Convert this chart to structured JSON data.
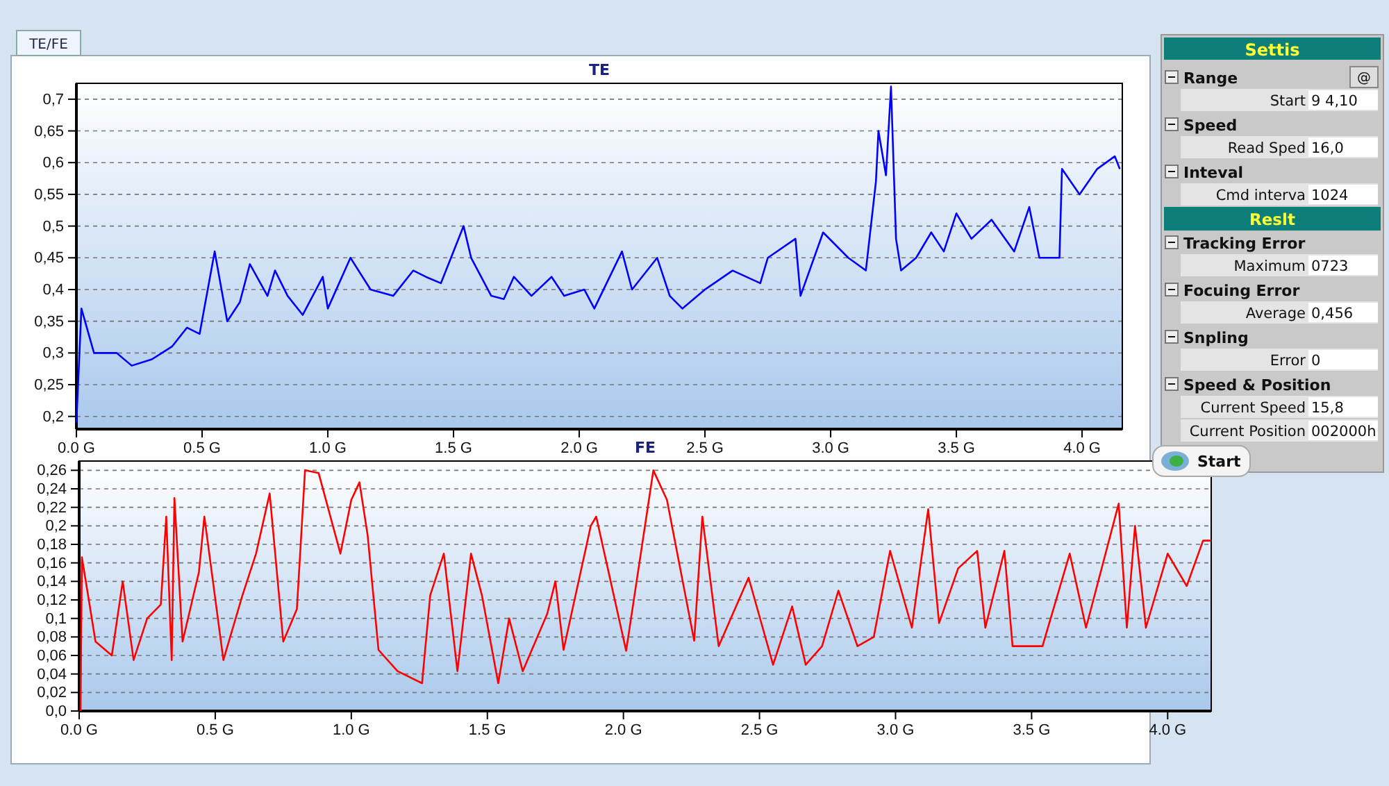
{
  "chart_data": [
    {
      "type": "line",
      "title": "TE",
      "annotations": [
        "TE/FE"
      ],
      "grid": "y",
      "xlim": [
        0,
        4.16
      ],
      "ylim": [
        0.18,
        0.725
      ],
      "xticks": [
        {
          "value": 0,
          "label": "0.0 G"
        },
        {
          "value": 0.5,
          "label": "0.5 G"
        },
        {
          "value": 1,
          "label": "1.0 G"
        },
        {
          "value": 1.5,
          "label": "1.5 G"
        },
        {
          "value": 2,
          "label": "2.0 G"
        },
        {
          "value": 2.5,
          "label": "2.5 G"
        },
        {
          "value": 3,
          "label": "3.0 G"
        },
        {
          "value": 3.5,
          "label": "3.5 G"
        },
        {
          "value": 4,
          "label": "4.0 G"
        }
      ],
      "yticks": [
        {
          "value": 0.2,
          "label": "0,2"
        },
        {
          "value": 0.25,
          "label": "0,25"
        },
        {
          "value": 0.3,
          "label": "0,3"
        },
        {
          "value": 0.35,
          "label": "0,35"
        },
        {
          "value": 0.4,
          "label": "0,4"
        },
        {
          "value": 0.45,
          "label": "0,45"
        },
        {
          "value": 0.5,
          "label": "0,5"
        },
        {
          "value": 0.55,
          "label": "0,55"
        },
        {
          "value": 0.6,
          "label": "0,6"
        },
        {
          "value": 0.65,
          "label": "0,65"
        },
        {
          "value": 0.7,
          "label": "0,7"
        }
      ],
      "series": [
        {
          "color": "#0000ff",
          "x": [
            0,
            0.02,
            0.07,
            0.16,
            0.22,
            0.3,
            0.38,
            0.44,
            0.49,
            0.55,
            0.6,
            0.65,
            0.69,
            0.76,
            0.79,
            0.84,
            0.9,
            0.98,
            1.0,
            1.09,
            1.17,
            1.26,
            1.34,
            1.39,
            1.45,
            1.54,
            1.57,
            1.65,
            1.7,
            1.74,
            1.81,
            1.89,
            1.94,
            2.02,
            2.06,
            2.17,
            2.21,
            2.31,
            2.36,
            2.41,
            2.5,
            2.61,
            2.72,
            2.75,
            2.86,
            2.88,
            2.97,
            3.07,
            3.14,
            3.18,
            3.19,
            3.22,
            3.24,
            3.26,
            3.28,
            3.34,
            3.4,
            3.45,
            3.5,
            3.56,
            3.64,
            3.73,
            3.79,
            3.83,
            3.91,
            3.92,
            3.99,
            4.06,
            4.13,
            4.15
          ],
          "values": [
            0.19,
            0.37,
            0.3,
            0.3,
            0.28,
            0.29,
            0.31,
            0.34,
            0.33,
            0.46,
            0.35,
            0.38,
            0.44,
            0.39,
            0.43,
            0.39,
            0.36,
            0.42,
            0.37,
            0.45,
            0.4,
            0.39,
            0.43,
            0.42,
            0.41,
            0.5,
            0.45,
            0.39,
            0.385,
            0.42,
            0.39,
            0.42,
            0.39,
            0.4,
            0.37,
            0.46,
            0.4,
            0.45,
            0.39,
            0.37,
            0.4,
            0.43,
            0.41,
            0.45,
            0.48,
            0.39,
            0.49,
            0.45,
            0.43,
            0.57,
            0.65,
            0.58,
            0.72,
            0.48,
            0.43,
            0.45,
            0.49,
            0.46,
            0.52,
            0.48,
            0.51,
            0.46,
            0.53,
            0.45,
            0.45,
            0.59,
            0.55,
            0.59,
            0.61,
            0.59
          ]
        }
      ]
    },
    {
      "type": "line",
      "title": "FE",
      "grid": "y",
      "xlim": [
        0,
        4.16
      ],
      "ylim": [
        0,
        0.27
      ],
      "xticks": [
        {
          "value": 0,
          "label": "0.0 G"
        },
        {
          "value": 0.5,
          "label": "0.5 G"
        },
        {
          "value": 1,
          "label": "1.0 G"
        },
        {
          "value": 1.5,
          "label": "1.5 G"
        },
        {
          "value": 2,
          "label": "2.0 G"
        },
        {
          "value": 2.5,
          "label": "2.5 G"
        },
        {
          "value": 3,
          "label": "3.0 G"
        },
        {
          "value": 3.5,
          "label": "3.5 G"
        },
        {
          "value": 4,
          "label": "4.0 G"
        }
      ],
      "yticks": [
        {
          "value": 0,
          "label": "0,0"
        },
        {
          "value": 0.02,
          "label": "0,02"
        },
        {
          "value": 0.04,
          "label": "0,04"
        },
        {
          "value": 0.06,
          "label": "0,06"
        },
        {
          "value": 0.08,
          "label": "0,08"
        },
        {
          "value": 0.1,
          "label": "0,1"
        },
        {
          "value": 0.12,
          "label": "0,12"
        },
        {
          "value": 0.14,
          "label": "0,14"
        },
        {
          "value": 0.16,
          "label": "0,16"
        },
        {
          "value": 0.18,
          "label": "0,18"
        },
        {
          "value": 0.2,
          "label": "0,2"
        },
        {
          "value": 0.22,
          "label": "0,22"
        },
        {
          "value": 0.24,
          "label": "0,24"
        },
        {
          "value": 0.26,
          "label": "0,26"
        }
      ],
      "series": [
        {
          "color": "#ff0000",
          "x": [
            0.005,
            0.01,
            0.03,
            0.06,
            0.12,
            0.16,
            0.2,
            0.25,
            0.3,
            0.32,
            0.34,
            0.35,
            0.38,
            0.44,
            0.46,
            0.53,
            0.6,
            0.65,
            0.7,
            0.75,
            0.8,
            0.83,
            0.88,
            0.96,
            1.0,
            1.03,
            1.06,
            1.1,
            1.17,
            1.26,
            1.29,
            1.34,
            1.39,
            1.44,
            1.48,
            1.54,
            1.58,
            1.63,
            1.72,
            1.75,
            1.78,
            1.88,
            1.9,
            2.01,
            2.11,
            2.16,
            2.26,
            2.29,
            2.35,
            2.46,
            2.55,
            2.62,
            2.67,
            2.73,
            2.79,
            2.86,
            2.92,
            2.98,
            3.06,
            3.12,
            3.16,
            3.23,
            3.3,
            3.33,
            3.4,
            3.43,
            3.54,
            3.64,
            3.7,
            3.82,
            3.85,
            3.88,
            3.92,
            4.0,
            4.07,
            4.13,
            4.16
          ],
          "values": [
            0.0,
            0.166,
            0.13,
            0.075,
            0.06,
            0.14,
            0.055,
            0.1,
            0.115,
            0.21,
            0.055,
            0.23,
            0.075,
            0.15,
            0.21,
            0.055,
            0.125,
            0.17,
            0.235,
            0.075,
            0.11,
            0.26,
            0.257,
            0.17,
            0.228,
            0.247,
            0.19,
            0.066,
            0.043,
            0.03,
            0.125,
            0.17,
            0.043,
            0.17,
            0.125,
            0.03,
            0.1,
            0.043,
            0.105,
            0.14,
            0.066,
            0.2,
            0.21,
            0.065,
            0.26,
            0.228,
            0.076,
            0.21,
            0.07,
            0.144,
            0.05,
            0.113,
            0.05,
            0.07,
            0.13,
            0.07,
            0.08,
            0.173,
            0.09,
            0.218,
            0.095,
            0.154,
            0.173,
            0.09,
            0.173,
            0.07,
            0.07,
            0.17,
            0.09,
            0.224,
            0.09,
            0.2,
            0.09,
            0.17,
            0.135,
            0.184,
            0.184
          ]
        }
      ]
    },
    {
      "type": "other",
      "title": "Settis",
      "annotations": [
        "Range",
        "@",
        "Start",
        "9 4,10",
        "Speed",
        "Read Sped",
        "16,0",
        "Inteval",
        "Cmd interva",
        "1024",
        "Reslt",
        "Tracking Error",
        "Maximum",
        "0723",
        "Focuing Error",
        "Average",
        "0,456",
        "Snpling",
        "Error",
        "0",
        "Speed & Position",
        "Current Speed",
        "15,8",
        "Current Position",
        "002000h",
        "Start"
      ]
    }
  ]
}
